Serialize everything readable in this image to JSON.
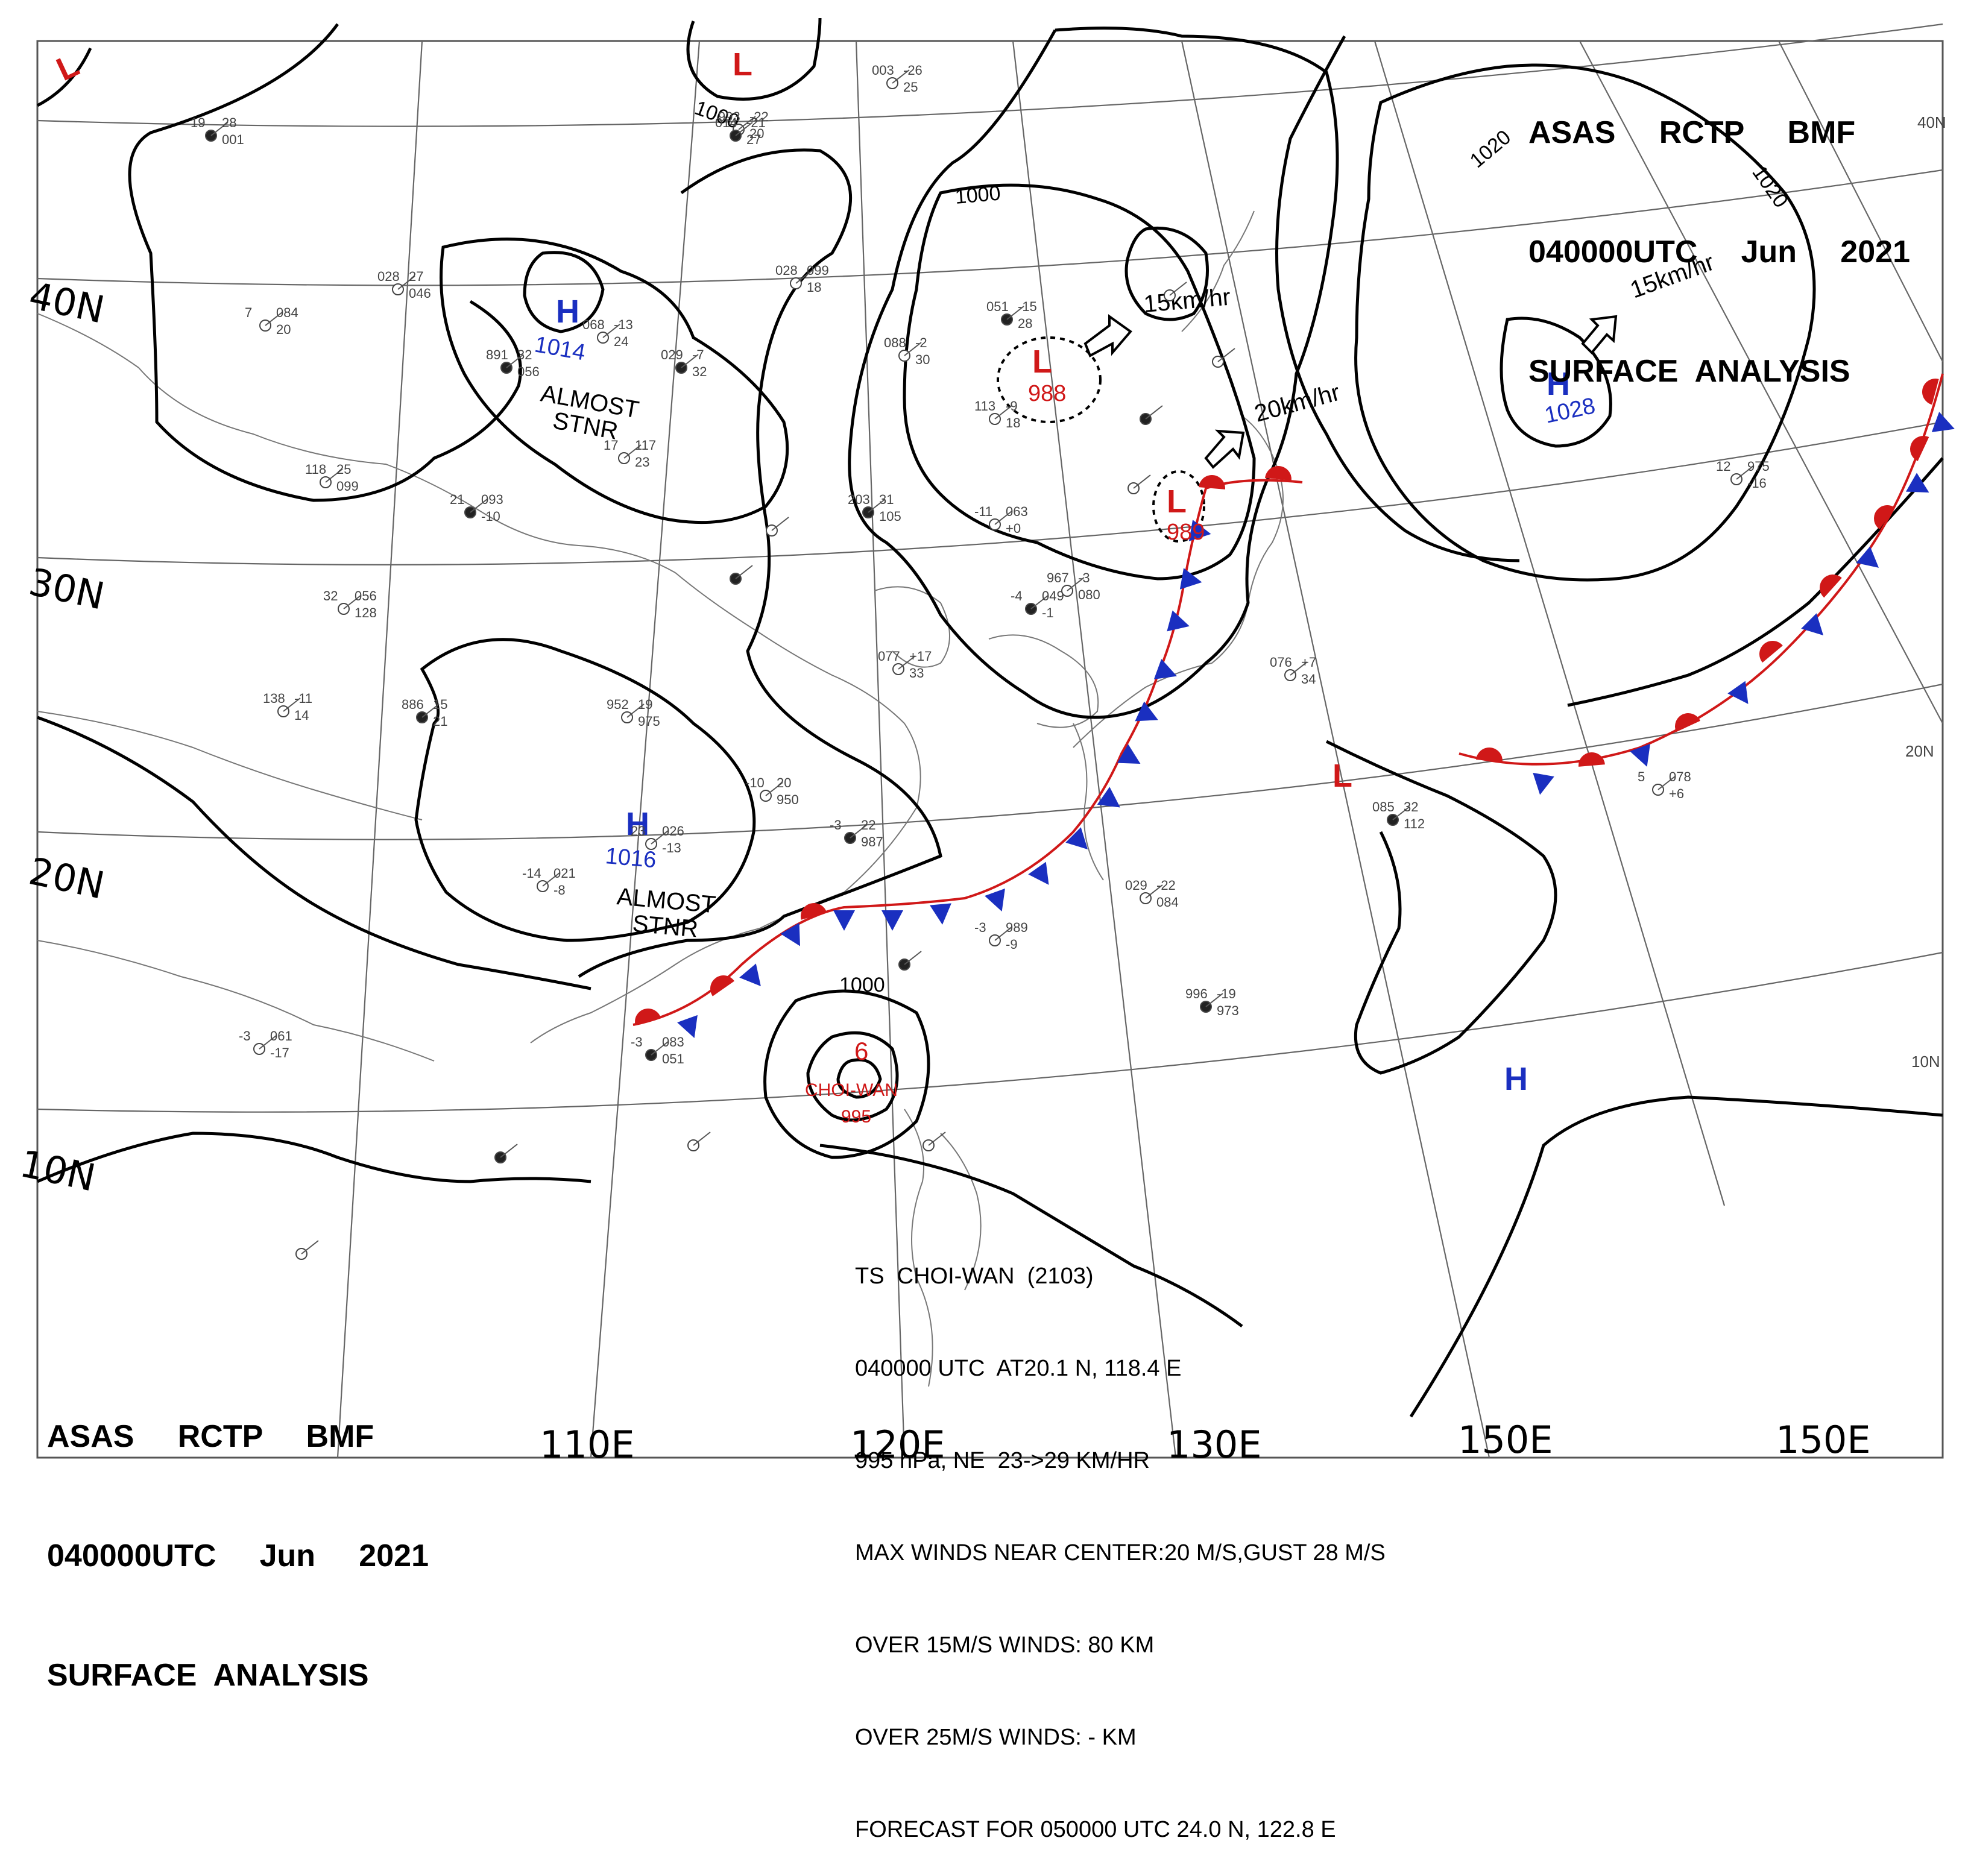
{
  "header_top": {
    "line1": "ASAS     RCTP     BMF",
    "line2": "040000UTC     Jun     2021",
    "line3": "SURFACE  ANALYSIS"
  },
  "header_bottom": {
    "line1": "ASAS     RCTP     BMF",
    "line2": "040000UTC     Jun     2021",
    "line3": "SURFACE  ANALYSIS"
  },
  "latitude_labels": [
    "40N",
    "30N",
    "20N",
    "10N"
  ],
  "longitude_labels": [
    "110E",
    "120E",
    "130E",
    "150E",
    "150E"
  ],
  "edge_labels": [
    "40N",
    "20N",
    "10N"
  ],
  "isobar_labels": [
    "1000",
    "1000",
    "1000",
    "1020",
    "1020"
  ],
  "pressure_centers": [
    {
      "type": "L",
      "value": "",
      "color": "#d01818"
    },
    {
      "type": "L",
      "value": "",
      "color": "#d01818"
    },
    {
      "type": "H",
      "value": "1014",
      "color": "#1a2fc0",
      "note": "ALMOST\nSTNR"
    },
    {
      "type": "L",
      "value": "988",
      "color": "#d01818"
    },
    {
      "type": "L",
      "value": "989",
      "color": "#d01818"
    },
    {
      "type": "H",
      "value": "1028",
      "color": "#1a2fc0"
    },
    {
      "type": "H",
      "value": "1016",
      "color": "#1a2fc0",
      "note": "ALMOST\nSTNR"
    },
    {
      "type": "L",
      "value": "",
      "color": "#d01818"
    },
    {
      "type": "H",
      "value": "",
      "color": "#1a2fc0"
    }
  ],
  "movement_labels": [
    "15km/hr",
    "20km/hr",
    "15km/hr"
  ],
  "typhoon": {
    "name": "CHOI-WAN",
    "pressure": "995",
    "symbol": "6"
  },
  "ts_info": {
    "line1": "TS  CHOI-WAN  (2103)",
    "line2": "040000 UTC  AT20.1 N, 118.4 E",
    "line3": "995 hPa, NE  23->29 KM/HR",
    "line4": "MAX WINDS NEAR CENTER:20 M/S,GUST 28 M/S",
    "line5": "OVER 15M/S WINDS: 80 KM",
    "line6": "OVER 25M/S WINDS: - KM",
    "line7": "FORECAST FOR 050000 UTC 24.0 N, 122.8 E"
  },
  "colors": {
    "high": "#1a2fc0",
    "low": "#d01818",
    "cold_front": "#1a2fc0",
    "warm_front": "#d01818"
  },
  "station_values": [
    "19",
    "28",
    "001",
    "993",
    "-22",
    "20",
    "003",
    "-26",
    "25",
    "014",
    "-21",
    "27",
    "028",
    "099",
    "18",
    "068",
    "-13",
    "24",
    "029",
    "-7",
    "32",
    "028",
    "27",
    "046",
    "7",
    "084",
    "20",
    "891",
    "32",
    "056",
    "17",
    "117",
    "23",
    "118",
    "25",
    "099",
    "21",
    "093",
    "-10",
    "32",
    "056",
    "128",
    "138",
    "-11",
    "14",
    "886",
    "15",
    "21",
    "952",
    "19",
    "975",
    "-10",
    "20",
    "950",
    "-3",
    "22",
    "987",
    "-14",
    "021",
    "-8",
    "23",
    "026",
    "-13",
    "051",
    "-15",
    "28",
    "088",
    "-2",
    "30",
    "113",
    "-9",
    "18",
    "203",
    "31",
    "105",
    "-11",
    "063",
    "+0",
    "967",
    "-3",
    "080",
    "-4",
    "049",
    "-1",
    "077",
    "+17",
    "33",
    "076",
    "+7",
    "34",
    "085",
    "32",
    "112",
    "5",
    "078",
    "+6",
    "12",
    "975",
    "-16",
    "996",
    "-19",
    "973",
    "-3",
    "989",
    "-9",
    "029",
    "-22",
    "084",
    "-3",
    "083",
    "051",
    "-3",
    "061",
    "-17"
  ]
}
